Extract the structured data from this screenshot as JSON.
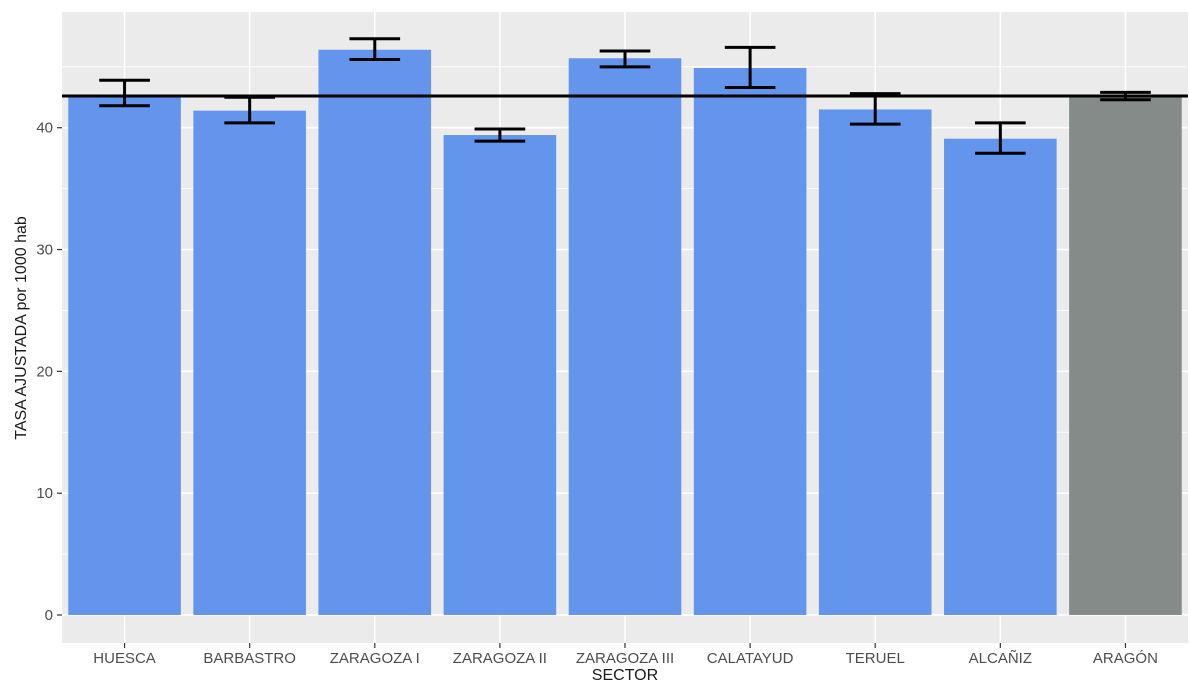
{
  "chart_data": {
    "type": "bar",
    "xlabel": "SECTOR",
    "ylabel": "TASA AJUSTADA por 1000 hab",
    "categories": [
      "HUESCA",
      "BARBASTRO",
      "ZARAGOZA I",
      "ZARAGOZA II",
      "ZARAGOZA III",
      "CALATAYUD",
      "TERUEL",
      "ALCAÑIZ",
      "ARAGÓN"
    ],
    "values": [
      42.7,
      41.4,
      46.4,
      39.4,
      45.7,
      44.9,
      41.5,
      39.1,
      42.6
    ],
    "error_low": [
      41.8,
      40.4,
      45.6,
      38.9,
      45.0,
      43.3,
      40.3,
      37.9,
      42.3
    ],
    "error_high": [
      43.9,
      42.5,
      47.3,
      39.9,
      46.3,
      46.6,
      42.8,
      40.4,
      42.9
    ],
    "bar_colors": [
      "#6495ED",
      "#6495ED",
      "#6495ED",
      "#6495ED",
      "#6495ED",
      "#6495ED",
      "#6495ED",
      "#6495ED",
      "#848B89"
    ],
    "reference_line": 42.6,
    "ylim": [
      -2.3,
      49.5
    ],
    "yticks": [
      0,
      10,
      20,
      30,
      40
    ],
    "ytick_labels": [
      "0",
      "10",
      "20",
      "30",
      "40"
    ],
    "grid": true,
    "panel_background": "#EBEBEB",
    "gridline_color": "#FFFFFF",
    "errorbar_color": "#000000"
  }
}
